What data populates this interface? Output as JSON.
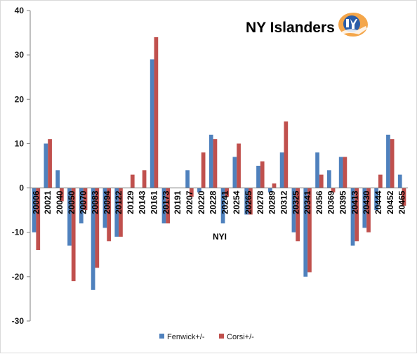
{
  "chart_data": {
    "type": "bar",
    "title": "NY Islanders",
    "xlabel": "NYI",
    "ylabel": "",
    "ylim": [
      -30,
      40
    ],
    "yticks": [
      40,
      30,
      20,
      10,
      0,
      -10,
      -20,
      -30
    ],
    "grid": false,
    "legend_position": "bottom",
    "categories": [
      "20006",
      "20021",
      "20040",
      "20050",
      "20070",
      "20083",
      "20094",
      "20122",
      "20129",
      "20143",
      "20161",
      "20173",
      "20191",
      "20207",
      "20220",
      "20228",
      "20241",
      "20254",
      "20265",
      "20278",
      "20289",
      "20312",
      "20325",
      "20341",
      "20356",
      "20369",
      "20395",
      "20413",
      "20430",
      "20444",
      "20452",
      "20465"
    ],
    "series": [
      {
        "name": "Fenwick+/-",
        "color": "#4f81bd",
        "values": [
          -10,
          10,
          4,
          -13,
          -8,
          -23,
          -9,
          -11,
          0,
          0,
          29,
          -8,
          0,
          4,
          -1,
          12,
          -8,
          7,
          -6,
          5,
          -1,
          8,
          -10,
          -20,
          8,
          4,
          7,
          -13,
          -9,
          -5,
          12,
          3
        ]
      },
      {
        "name": "Corsi+/-",
        "color": "#c0504d",
        "values": [
          -14,
          11,
          -3,
          -21,
          -5,
          -18,
          -12,
          -11,
          3,
          4,
          34,
          -8,
          0,
          -2,
          8,
          11,
          -2,
          10,
          -6,
          6,
          1,
          15,
          -12,
          -19,
          3,
          -1,
          7,
          -12,
          -10,
          3,
          11,
          -4
        ]
      }
    ]
  }
}
